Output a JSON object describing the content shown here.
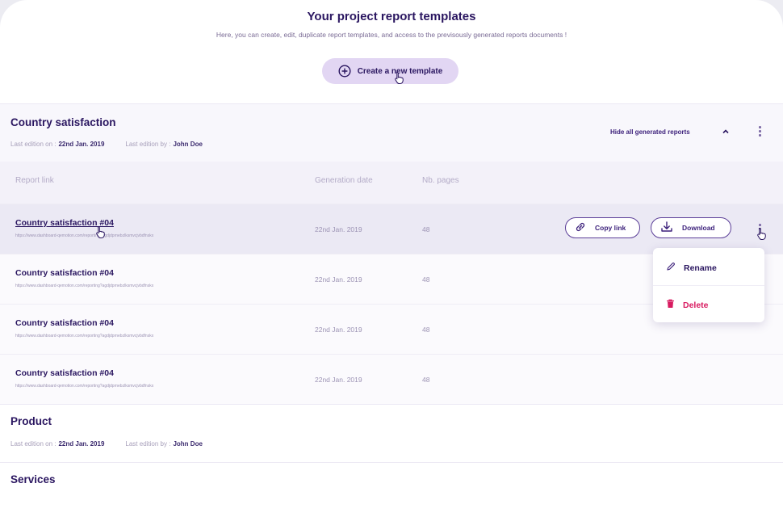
{
  "header": {
    "title": "Your project report templates",
    "subtitle": "Here, you can create, edit, duplicate report templates, and access to the previsously generated reports documents !",
    "create_button": "Create a new template"
  },
  "sections": [
    {
      "title": "Country satisfaction",
      "last_edition_on_label": "Last edition on :",
      "last_edition_on": "22nd Jan. 2019",
      "last_edition_by_label": "Last edition by :",
      "last_edition_by": "John Doe",
      "toggle_label": "Hide all generated reports"
    },
    {
      "title": "Product",
      "last_edition_on_label": "Last edition on :",
      "last_edition_on": "22nd Jan. 2019",
      "last_edition_by_label": "Last edition by :",
      "last_edition_by": "John Doe"
    },
    {
      "title": "Services"
    }
  ],
  "reports_table": {
    "columns": [
      "Report link",
      "Generation date",
      "Nb. pages"
    ],
    "rows": [
      {
        "name": "Country satisfaction #04",
        "url": "https://www.dashboard-qemotion.com/reporting?agdjdprnebzlksmvcjvbdfnskx",
        "date": "22nd Jan. 2019",
        "pages": "48"
      },
      {
        "name": "Country satisfaction #04",
        "url": "https://www.dashboard-qemotion.com/reporting?agdjdprnebzlksmvcjvbdfnskx",
        "date": "22nd Jan. 2019",
        "pages": "48"
      },
      {
        "name": "Country satisfaction #04",
        "url": "https://www.dashboard-qemotion.com/reporting?agdjdprnebzlksmvcjvbdfnskx",
        "date": "22nd Jan. 2019",
        "pages": "48"
      },
      {
        "name": "Country satisfaction #04",
        "url": "https://www.dashboard-qemotion.com/reporting?agdjdprnebzlksmvcjvbdfnskx",
        "date": "22nd Jan. 2019",
        "pages": "48"
      }
    ],
    "row_actions": {
      "copy_link": "Copy link",
      "download": "Download"
    }
  },
  "context_menu": {
    "rename": "Rename",
    "delete": "Delete"
  },
  "icons": {
    "create": "plus-circle-icon",
    "copy": "link-icon",
    "download": "download-icon",
    "rename": "pencil-icon",
    "delete": "trash-icon",
    "collapse": "chevron-up-icon",
    "more": "kebab-menu-icon",
    "cursor": "hand-pointer-icon"
  },
  "colors": {
    "brand": "#2a1660",
    "accent": "#5c3f98",
    "button_bg": "#e2d6f3",
    "delete": "#d81b60"
  }
}
